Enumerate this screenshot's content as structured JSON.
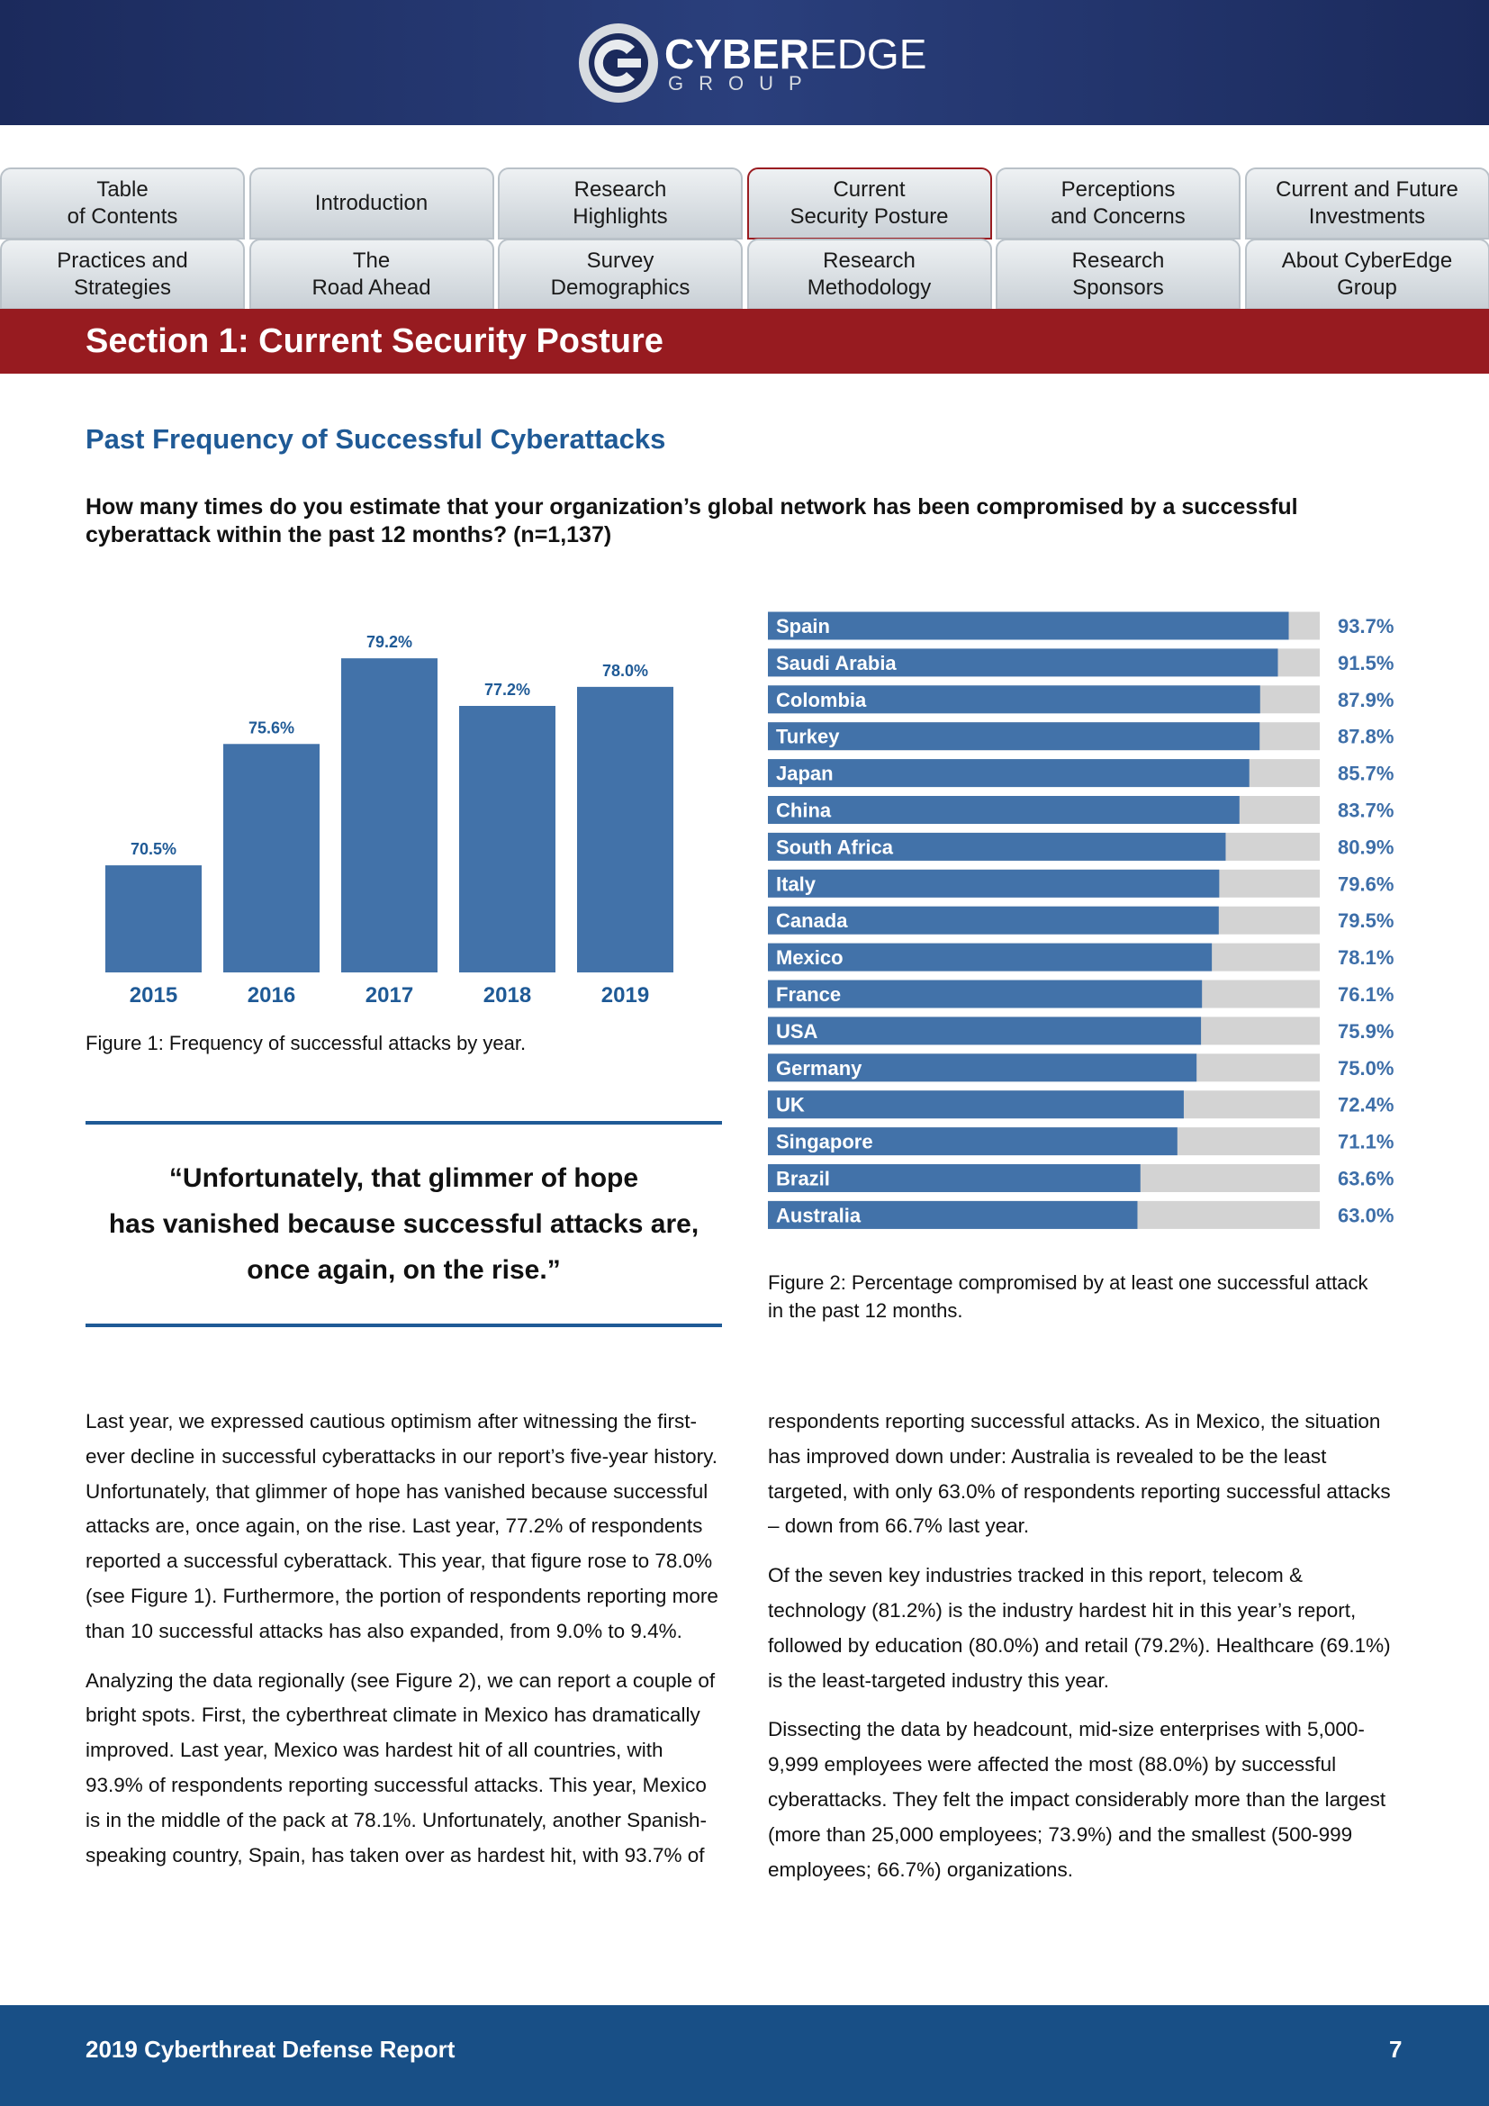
{
  "header": {
    "logo_name_bold": "CYBER",
    "logo_name_light": "EDGE",
    "logo_sub": "GROUP"
  },
  "nav": [
    "Table\nof Contents",
    "Introduction",
    "Research\nHighlights",
    "Current\nSecurity Posture",
    "Perceptions\nand Concerns",
    "Current and Future\nInvestments",
    "Practices and\nStrategies",
    "The\nRoad Ahead",
    "Survey\nDemographics",
    "Research\nMethodology",
    "Research\nSponsors",
    "About CyberEdge\nGroup"
  ],
  "section_title": "Section 1: Current Security Posture",
  "heading": "Past Frequency of Successful Cyberattacks",
  "question": "How many times do you estimate that your organization’s global network has been compromised by a successful cyberattack within the past 12 months? (n=1,137)",
  "chart_data": [
    {
      "type": "bar",
      "caption": "Figure 1: Frequency of successful attacks by year.",
      "categories": [
        "2015",
        "2016",
        "2017",
        "2018",
        "2019"
      ],
      "values": [
        70.5,
        75.6,
        79.2,
        77.2,
        78.0
      ],
      "value_labels": [
        "70.5%",
        "75.6%",
        "79.2%",
        "77.2%",
        "78.0%"
      ],
      "color": "#4272a9",
      "ylim": [
        66,
        80
      ]
    },
    {
      "type": "hbar",
      "caption": "Figure 2: Percentage compromised by at least one successful attack in the past 12 months.",
      "categories": [
        "Spain",
        "Saudi Arabia",
        "Colombia",
        "Turkey",
        "Japan",
        "China",
        "South Africa",
        "Italy",
        "Canada",
        "Mexico",
        "France",
        "USA",
        "Germany",
        "UK",
        "Singapore",
        "Brazil",
        "Australia"
      ],
      "values": [
        93.7,
        91.5,
        87.9,
        87.8,
        85.7,
        83.7,
        80.9,
        79.6,
        79.5,
        78.1,
        76.1,
        75.9,
        75.0,
        72.4,
        71.1,
        63.6,
        63.0
      ],
      "value_labels": [
        "93.7%",
        "91.5%",
        "87.9%",
        "87.8%",
        "85.7%",
        "83.7%",
        "80.9%",
        "79.6%",
        "79.5%",
        "78.1%",
        "76.1%",
        "75.9%",
        "75.0%",
        "72.4%",
        "71.1%",
        "63.6%",
        "63.0%"
      ],
      "color": "#4272a9",
      "track_color": "#d3d3d3",
      "xlim": [
        -12,
        100
      ]
    }
  ],
  "quote": "“Unfortunately, that glimmer of hope\nhas vanished because successful attacks are,\nonce again, on the rise.”",
  "body": {
    "left": [
      "Last year, we expressed cautious optimism after witnessing the first-ever decline in successful cyberattacks in our report’s five-year history. Unfortunately, that glimmer of hope has vanished because successful attacks are, once again, on the rise. Last year, 77.2% of respondents reported a successful cyberattack. This year, that figure rose to 78.0% (see Figure 1). Furthermore, the portion of respondents reporting more than 10 successful attacks has also expanded, from 9.0% to 9.4%.",
      "Analyzing the data regionally (see Figure 2), we can report a couple of bright spots. First, the cyberthreat climate in Mexico has dramatically improved. Last year, Mexico was hardest hit of all countries, with 93.9% of respondents reporting successful attacks. This year, Mexico is in the middle of the pack at 78.1%. Unfortunately, another Spanish-speaking country, Spain, has taken over as hardest hit, with 93.7% of"
    ],
    "right": [
      "respondents reporting successful attacks. As in Mexico, the situation has improved down under: Australia is revealed to be the least targeted, with only 63.0% of respondents reporting successful attacks – down from 66.7% last year.",
      "Of the seven key industries tracked in this report, telecom & technology (81.2%) is the industry hardest hit in this year’s report, followed by education (80.0%) and retail (79.2%). Healthcare (69.1%) is the least-targeted industry this year.",
      "Dissecting the data by headcount, mid-size enterprises with 5,000-9,999 employees were affected the most (88.0%) by successful cyberattacks. They felt the impact considerably more than the largest (more than 25,000 employees; 73.9%) and the smallest (500-999 employees; 66.7%) organizations."
    ]
  },
  "footer": {
    "title": "2019 Cyberthreat Defense Report",
    "page": "7"
  }
}
